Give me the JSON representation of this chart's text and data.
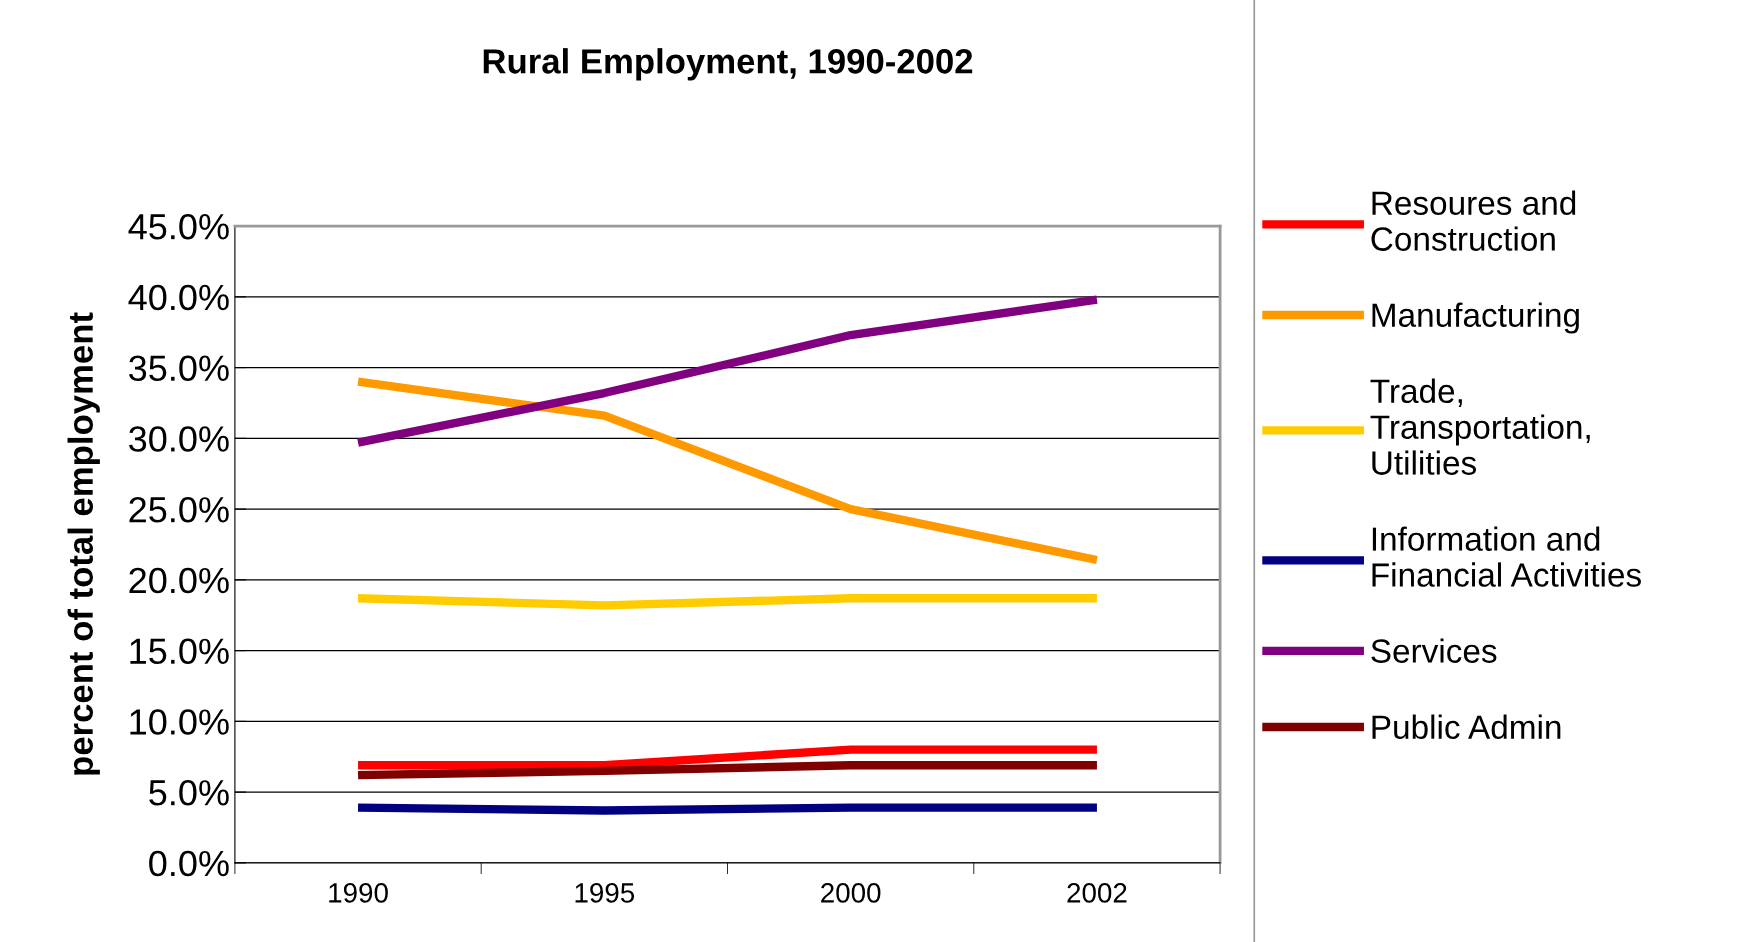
{
  "chart_data": {
    "type": "line",
    "title": "Rural Employment, 1990-2002",
    "ylabel": "percent of total employment",
    "categories": [
      "1990",
      "1995",
      "2000",
      "2002"
    ],
    "series": [
      {
        "name": "Resoures and\nConstruction",
        "color": "#ff0000",
        "values": [
          6.9,
          6.9,
          8.0,
          8.0
        ]
      },
      {
        "name": "Manufacturing",
        "color": "#ff9900",
        "values": [
          34.0,
          31.6,
          25.0,
          21.4
        ]
      },
      {
        "name": "Trade,\nTransportation,\nUtilities",
        "color": "#ffcc00",
        "values": [
          18.7,
          18.2,
          18.7,
          18.7
        ]
      },
      {
        "name": "Information and\nFinancial Activities",
        "color": "#000080",
        "values": [
          3.9,
          3.7,
          3.9,
          3.9
        ]
      },
      {
        "name": "Services",
        "color": "#800080",
        "values": [
          29.7,
          33.2,
          37.3,
          39.8
        ]
      },
      {
        "name": "Public Admin",
        "color": "#800000",
        "values": [
          6.2,
          6.5,
          6.9,
          6.9
        ]
      }
    ],
    "ylim": [
      0,
      45
    ],
    "yticks": [
      {
        "value": 0,
        "label": "0.0%"
      },
      {
        "value": 5,
        "label": "5.0%"
      },
      {
        "value": 10,
        "label": "10.0%"
      },
      {
        "value": 15,
        "label": "15.0%"
      },
      {
        "value": 20,
        "label": "20.0%"
      },
      {
        "value": 25,
        "label": "25.0%"
      },
      {
        "value": 30,
        "label": "30.0%"
      },
      {
        "value": 35,
        "label": "35.0%"
      },
      {
        "value": 40,
        "label": "40.0%"
      },
      {
        "value": 45,
        "label": "45.0%"
      }
    ],
    "grid": "y",
    "legend": "right",
    "marker": "none",
    "line_style": "solid"
  }
}
